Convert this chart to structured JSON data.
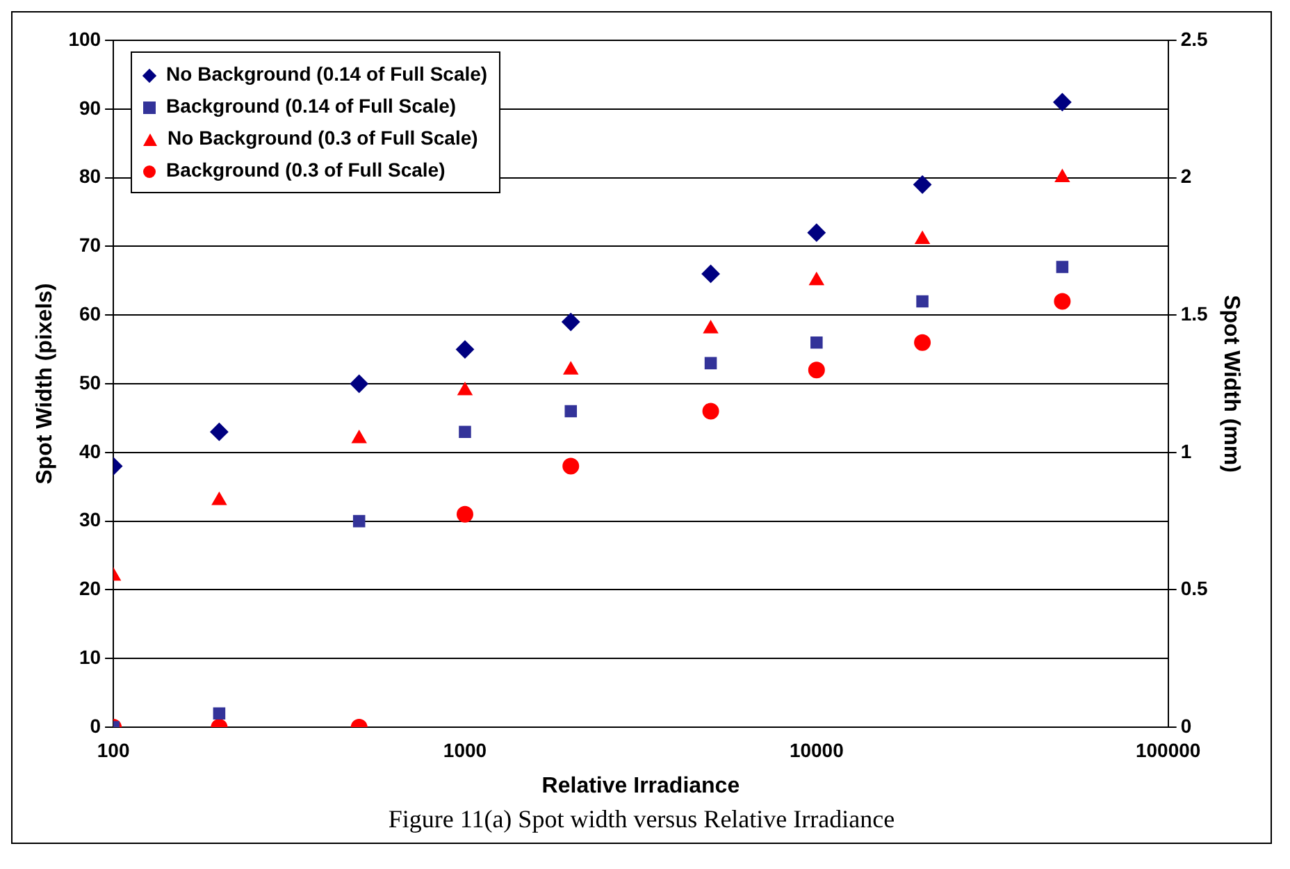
{
  "chart_data": {
    "type": "scatter",
    "xlabel": "Relative Irradiance",
    "ylabel": "Spot Width (pixels)",
    "y2label": "Spot Width (mm)",
    "x": [
      100,
      200,
      500,
      1000,
      2000,
      5000,
      10000,
      20000,
      50000
    ],
    "series": [
      {
        "name": "No Background (0.14 of Full Scale)",
        "color": "#000080",
        "marker": "diamond",
        "values": [
          38,
          43,
          50,
          55,
          59,
          66,
          72,
          79,
          91
        ]
      },
      {
        "name": "Background (0.14 of Full Scale)",
        "color": "#333399",
        "marker": "square",
        "values": [
          0,
          2,
          30,
          43,
          46,
          53,
          56,
          62,
          67
        ]
      },
      {
        "name": "No Background (0.3 of Full Scale)",
        "color": "#ff0000",
        "marker": "triangle",
        "values": [
          22,
          33,
          42,
          49,
          52,
          58,
          65,
          71,
          80
        ]
      },
      {
        "name": "Background (0.3 of Full Scale)",
        "color": "#ff0000",
        "marker": "circle",
        "values": [
          0,
          0,
          0,
          31,
          38,
          46,
          52,
          56,
          62
        ]
      }
    ],
    "log": "x",
    "xlim": [
      100,
      100000
    ],
    "xticks": [
      100,
      1000,
      10000,
      100000
    ],
    "ylim": [
      0,
      100
    ],
    "yticks": [
      0,
      10,
      20,
      30,
      40,
      50,
      60,
      70,
      80,
      90,
      100
    ],
    "y2lim": [
      0,
      2.5
    ],
    "y2ticks": [
      0,
      0.5,
      1,
      1.5,
      2,
      2.5
    ],
    "grid": "y",
    "legend": "top left",
    "annotations": [
      "Figure 11(a) Spot width versus Relative Irradiance"
    ]
  }
}
